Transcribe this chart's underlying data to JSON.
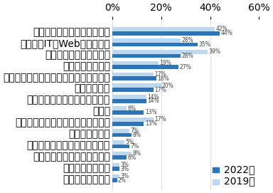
{
  "categories": [
    "経営・経営企画・事業企画系",
    "技術系（IT・Web・通信系）",
    "営業・マーケティング系",
    "コンサルタント系",
    "技術系（建築・設備・土木・プラント）",
    "事務・管理系",
    "技術系（電気・電子・半導体）",
    "金融系",
    "技術系（機械・メカトロ・自動車）",
    "不動産系専門職",
    "技術・専門職系（メディカル）",
    "技術系（化学・素材・食品）",
    "クリエイティブ系",
    "サービス・流通系"
  ],
  "values_2022": [
    44,
    35,
    28,
    27,
    18,
    17,
    14,
    13,
    13,
    8,
    7,
    6,
    3,
    2
  ],
  "values_2019": [
    42,
    28,
    39,
    19,
    17,
    20,
    14,
    6,
    17,
    7,
    5,
    8,
    3,
    3
  ],
  "color_2022": "#2E75B6",
  "color_2019": "#BDD7EE",
  "legend_2022": "2022年",
  "legend_2019": "2019年",
  "xlim": [
    0,
    60
  ],
  "xticks": [
    0,
    20,
    40,
    60
  ],
  "xticklabels": [
    "0%",
    "20%",
    "40%",
    "60%"
  ],
  "bar_height": 0.36,
  "label_fontsize": 5.5,
  "tick_fontsize": 5.5,
  "legend_fontsize": 6.5
}
